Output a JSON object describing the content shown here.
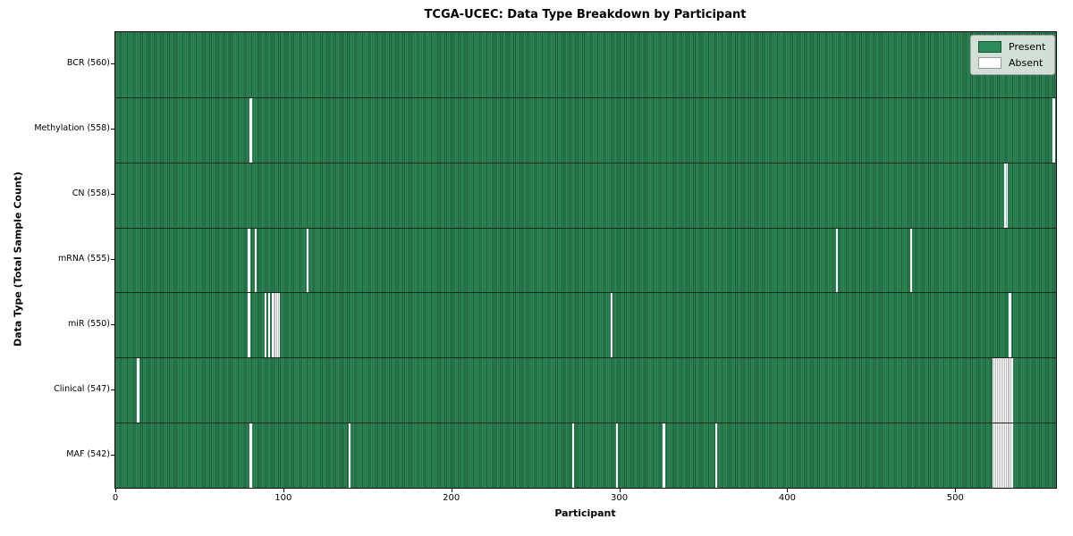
{
  "title": "TCGA-UCEC: Data Type Breakdown by Participant",
  "colors": {
    "present": "#2e8b57",
    "absent": "#ffffff",
    "cell_edge": "rgba(10,45,28,0.55)",
    "row_separator": "#17241c",
    "legend_bg": "rgba(235,238,235,0.88)"
  },
  "legend": {
    "present_label": "Present",
    "absent_label": "Absent",
    "position": "upper right"
  },
  "chart_data": {
    "type": "heatmap",
    "title": "TCGA-UCEC: Data Type Breakdown by Participant",
    "xlabel": "Participant",
    "ylabel": "Data Type (Total Sample Count)",
    "n_participants": 560,
    "x_ticks": [
      0,
      100,
      200,
      300,
      400,
      500
    ],
    "xlim": [
      0,
      560
    ],
    "grid": false,
    "legend_entries": [
      "Present",
      "Absent"
    ],
    "legend_position": "upper right",
    "rows": [
      {
        "key": "bcr",
        "label": "BCR (560)",
        "data_type": "BCR",
        "present_count": 560,
        "absent_participants": []
      },
      {
        "key": "methylation",
        "label": "Methylation (558)",
        "data_type": "Methylation",
        "present_count": 558,
        "absent_participants": [
          80,
          558
        ]
      },
      {
        "key": "cn",
        "label": "CN (558)",
        "data_type": "CN",
        "present_count": 558,
        "absent_participants": [
          529,
          530
        ]
      },
      {
        "key": "mrna",
        "label": "mRNA (555)",
        "data_type": "mRNA",
        "present_count": 555,
        "absent_participants": [
          79,
          83,
          114,
          429,
          473
        ]
      },
      {
        "key": "mir",
        "label": "miR (550)",
        "data_type": "miR",
        "present_count": 550,
        "absent_participants": [
          79,
          89,
          91,
          93,
          94,
          95,
          96,
          97,
          295,
          532
        ]
      },
      {
        "key": "clinical",
        "label": "Clinical (547)",
        "data_type": "Clinical",
        "present_count": 547,
        "absent_participants": [
          13,
          522,
          523,
          524,
          525,
          526,
          527,
          528,
          529,
          530,
          531,
          532,
          533
        ]
      },
      {
        "key": "maf",
        "label": "MAF (542)",
        "data_type": "MAF",
        "present_count": 542,
        "absent_participants": [
          80,
          139,
          272,
          298,
          326,
          357,
          522,
          523,
          524,
          525,
          526,
          527,
          528,
          529,
          530,
          531,
          532,
          533
        ]
      }
    ]
  }
}
